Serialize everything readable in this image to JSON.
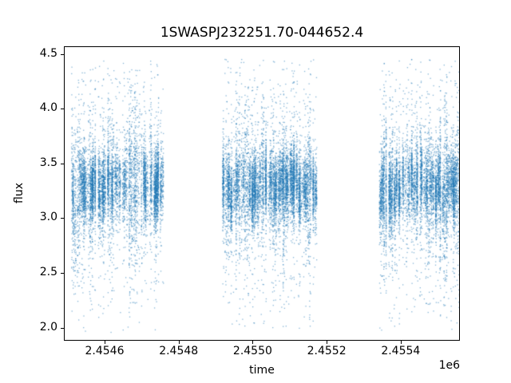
{
  "chart_data": {
    "type": "scatter",
    "title": "1SWASPJ232251.70-044652.4",
    "xlabel": "time",
    "ylabel": "flux",
    "x_offset_label": "1e6",
    "xlim": [
      2454490,
      2455560
    ],
    "ylim": [
      1.88,
      4.57
    ],
    "x_ticks": [
      {
        "value": 2454600,
        "label": "2.4546"
      },
      {
        "value": 2454800,
        "label": "2.4548"
      },
      {
        "value": 2455000,
        "label": "2.4550"
      },
      {
        "value": 2455200,
        "label": "2.4552"
      },
      {
        "value": 2455400,
        "label": "2.4554"
      }
    ],
    "y_ticks": [
      {
        "value": 2.0,
        "label": "2.0"
      },
      {
        "value": 2.5,
        "label": "2.5"
      },
      {
        "value": 3.0,
        "label": "3.0"
      },
      {
        "value": 3.5,
        "label": "3.5"
      },
      {
        "value": 4.0,
        "label": "4.0"
      },
      {
        "value": 4.5,
        "label": "4.5"
      }
    ],
    "grid": false,
    "legend": "none",
    "marker_color": "#1f77b4",
    "marker_size": 1.3,
    "marker_alpha": 0.55,
    "seed": 20230923,
    "flux_model": {
      "center": 3.28,
      "night_center_sd": 0.05,
      "core_sd": 0.16,
      "tail_fraction": 0.16,
      "tail_sd": 0.55,
      "long_night_fraction": 0.28,
      "long_core_sd": 0.32,
      "long_tail_fraction": 0.45,
      "min": 1.95,
      "max": 4.45
    },
    "clusters": [
      {
        "x_min": 2454507,
        "x_max": 2454762,
        "n_nights": 42,
        "min_points": 60,
        "max_points": 330
      },
      {
        "x_min": 2454918,
        "x_max": 2455172,
        "n_nights": 46,
        "min_points": 60,
        "max_points": 330
      },
      {
        "x_min": 2455342,
        "x_max": 2455556,
        "n_nights": 38,
        "min_points": 60,
        "max_points": 330
      }
    ]
  }
}
